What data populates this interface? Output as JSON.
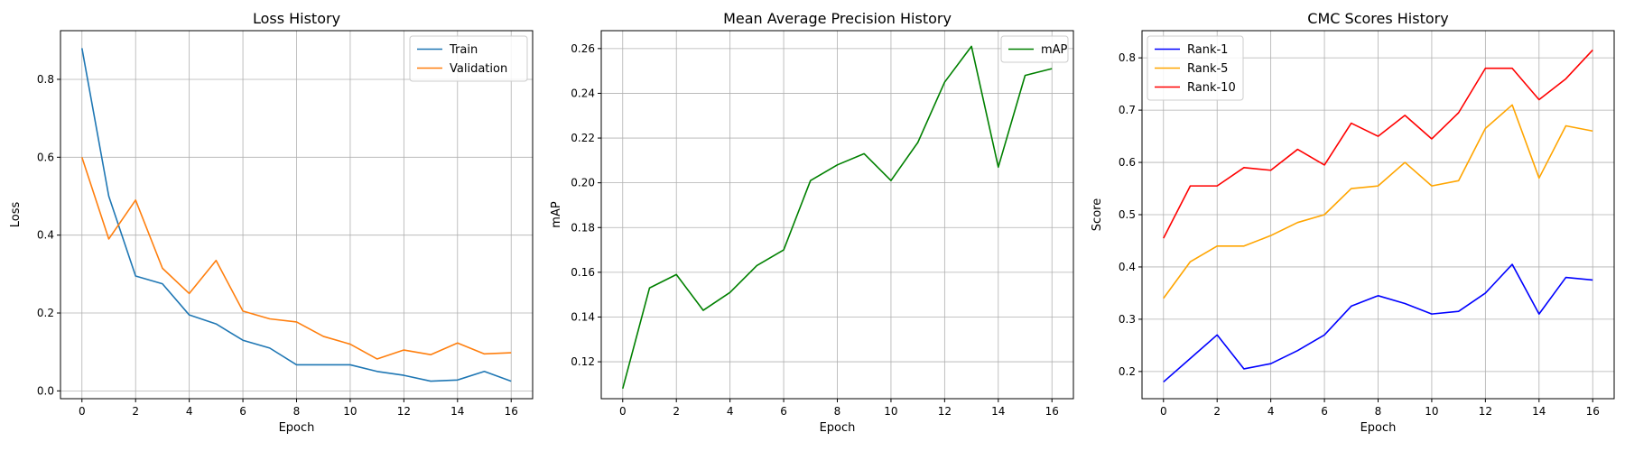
{
  "chart_data": [
    {
      "type": "line",
      "title": "Loss History",
      "xlabel": "Epoch",
      "ylabel": "Loss",
      "xlim": [
        -0.8,
        16.8
      ],
      "ylim": [
        -0.02,
        0.925
      ],
      "xticks": [
        0,
        2,
        4,
        6,
        8,
        10,
        12,
        14,
        16
      ],
      "yticks": [
        0.0,
        0.2,
        0.4,
        0.6,
        0.8
      ],
      "ytick_decimals": 1,
      "grid": true,
      "legend_position": "top-right",
      "x": [
        0,
        1,
        2,
        3,
        4,
        5,
        6,
        7,
        8,
        9,
        10,
        11,
        12,
        13,
        14,
        15,
        16
      ],
      "series": [
        {
          "name": "Train",
          "color": "#1f77b4",
          "values": [
            0.88,
            0.5,
            0.295,
            0.275,
            0.195,
            0.172,
            0.13,
            0.11,
            0.067,
            0.067,
            0.067,
            0.05,
            0.04,
            0.025,
            0.028,
            0.05,
            0.025
          ]
        },
        {
          "name": "Validation",
          "color": "#ff7f0e",
          "values": [
            0.6,
            0.39,
            0.49,
            0.315,
            0.25,
            0.335,
            0.205,
            0.185,
            0.177,
            0.14,
            0.12,
            0.082,
            0.105,
            0.093,
            0.123,
            0.095,
            0.098
          ]
        }
      ]
    },
    {
      "type": "line",
      "title": "Mean Average Precision History",
      "xlabel": "Epoch",
      "ylabel": "mAP",
      "xlim": [
        -0.8,
        16.8
      ],
      "ylim": [
        0.1035,
        0.268
      ],
      "xticks": [
        0,
        2,
        4,
        6,
        8,
        10,
        12,
        14,
        16
      ],
      "yticks": [
        0.12,
        0.14,
        0.16,
        0.18,
        0.2,
        0.22,
        0.24,
        0.26
      ],
      "ytick_decimals": 2,
      "grid": true,
      "legend_position": "top-right",
      "x": [
        0,
        1,
        2,
        3,
        4,
        5,
        6,
        7,
        8,
        9,
        10,
        11,
        12,
        13,
        14,
        15,
        16
      ],
      "series": [
        {
          "name": "mAP",
          "color": "#008000",
          "values": [
            0.108,
            0.153,
            0.159,
            0.143,
            0.151,
            0.163,
            0.17,
            0.201,
            0.208,
            0.213,
            0.201,
            0.218,
            0.245,
            0.261,
            0.207,
            0.248,
            0.251
          ]
        }
      ]
    },
    {
      "type": "line",
      "title": "CMC Scores History",
      "xlabel": "Epoch",
      "ylabel": "Score",
      "xlim": [
        -0.8,
        16.8
      ],
      "ylim": [
        0.148,
        0.852
      ],
      "xticks": [
        0,
        2,
        4,
        6,
        8,
        10,
        12,
        14,
        16
      ],
      "yticks": [
        0.2,
        0.3,
        0.4,
        0.5,
        0.6,
        0.7,
        0.8
      ],
      "ytick_decimals": 1,
      "grid": true,
      "legend_position": "top-left",
      "x": [
        0,
        1,
        2,
        3,
        4,
        5,
        6,
        7,
        8,
        9,
        10,
        11,
        12,
        13,
        14,
        15,
        16
      ],
      "series": [
        {
          "name": "Rank-1",
          "color": "#0000ff",
          "values": [
            0.18,
            0.225,
            0.27,
            0.205,
            0.215,
            0.24,
            0.27,
            0.325,
            0.345,
            0.33,
            0.31,
            0.315,
            0.35,
            0.405,
            0.31,
            0.38,
            0.375
          ]
        },
        {
          "name": "Rank-5",
          "color": "#ffa500",
          "values": [
            0.34,
            0.41,
            0.44,
            0.44,
            0.46,
            0.485,
            0.5,
            0.55,
            0.555,
            0.6,
            0.555,
            0.565,
            0.665,
            0.71,
            0.57,
            0.67,
            0.66
          ]
        },
        {
          "name": "Rank-10",
          "color": "#ff0000",
          "values": [
            0.455,
            0.555,
            0.555,
            0.59,
            0.585,
            0.625,
            0.595,
            0.675,
            0.65,
            0.69,
            0.645,
            0.695,
            0.78,
            0.78,
            0.72,
            0.76,
            0.815
          ]
        }
      ]
    }
  ]
}
